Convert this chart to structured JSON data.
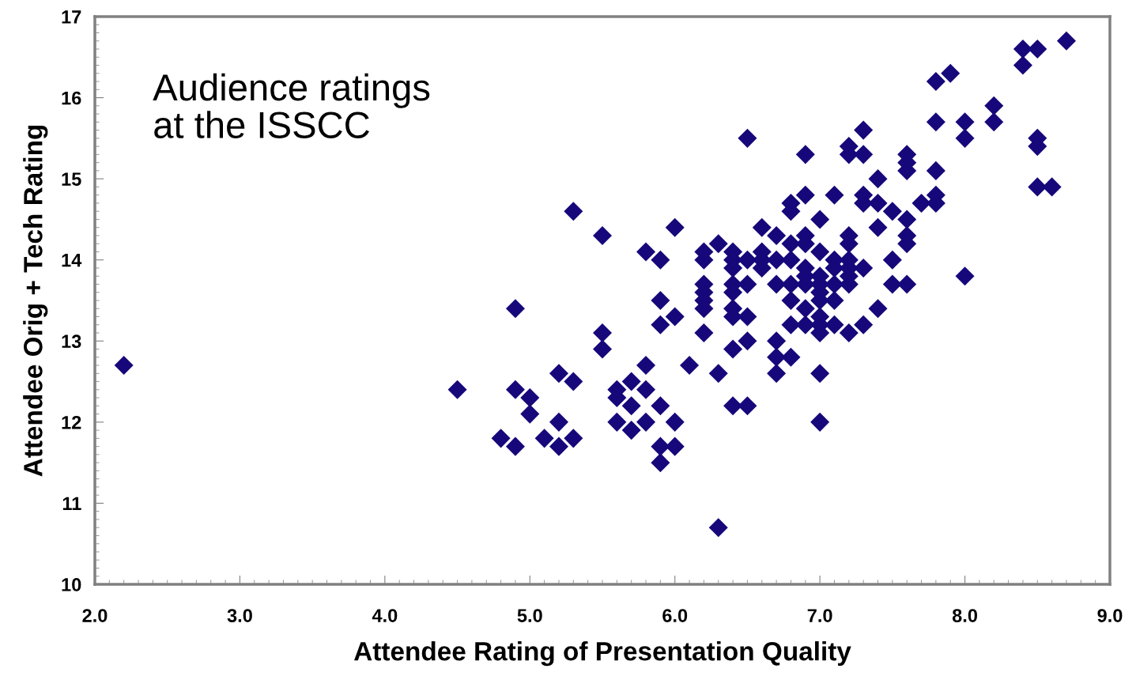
{
  "chart_data": {
    "type": "scatter",
    "xlabel": "Attendee Rating of Presentation Quality",
    "ylabel": "Attendee Orig + Tech Rating",
    "annotations": [
      "Audience ratings\nat the ISSCC"
    ],
    "marker": "diamond",
    "grid": false,
    "xlim": [
      2.0,
      9.0
    ],
    "ylim": [
      10,
      17
    ],
    "xticks": [
      {
        "value": 2,
        "label": "2.0"
      },
      {
        "value": 3,
        "label": "3.0"
      },
      {
        "value": 4,
        "label": "4.0"
      },
      {
        "value": 5,
        "label": "5.0"
      },
      {
        "value": 6,
        "label": "6.0"
      },
      {
        "value": 7,
        "label": "7.0"
      },
      {
        "value": 8,
        "label": "8.0"
      },
      {
        "value": 9,
        "label": "9.0"
      }
    ],
    "yticks": [
      10,
      11,
      12,
      13,
      14,
      15,
      16,
      17
    ],
    "series": [
      {
        "color": "#16087a",
        "x": [
          2.2,
          4.5,
          4.8,
          4.9,
          4.9,
          4.9,
          5.0,
          5.0,
          5.1,
          5.2,
          5.2,
          5.2,
          5.3,
          5.3,
          5.3,
          5.5,
          5.5,
          5.5,
          5.6,
          5.6,
          5.6,
          5.7,
          5.7,
          5.7,
          5.8,
          5.8,
          5.8,
          5.8,
          5.9,
          5.9,
          5.9,
          5.9,
          5.9,
          5.9,
          6.0,
          6.0,
          6.0,
          6.0,
          6.1,
          6.2,
          6.2,
          6.2,
          6.2,
          6.2,
          6.2,
          6.2,
          6.3,
          6.3,
          6.3,
          6.4,
          6.4,
          6.4,
          6.4,
          6.4,
          6.4,
          6.4,
          6.4,
          6.4,
          6.5,
          6.5,
          6.5,
          6.5,
          6.5,
          6.5,
          6.6,
          6.6,
          6.6,
          6.6,
          6.7,
          6.7,
          6.7,
          6.7,
          6.7,
          6.7,
          6.8,
          6.8,
          6.8,
          6.8,
          6.8,
          6.8,
          6.8,
          6.8,
          6.9,
          6.9,
          6.9,
          6.9,
          6.9,
          6.9,
          6.9,
          6.9,
          6.9,
          7.0,
          7.0,
          7.0,
          7.0,
          7.0,
          7.0,
          7.0,
          7.0,
          7.0,
          7.0,
          7.0,
          7.1,
          7.1,
          7.1,
          7.1,
          7.1,
          7.1,
          7.2,
          7.2,
          7.2,
          7.2,
          7.2,
          7.2,
          7.2,
          7.2,
          7.2,
          7.3,
          7.3,
          7.3,
          7.3,
          7.3,
          7.3,
          7.4,
          7.4,
          7.4,
          7.4,
          7.5,
          7.5,
          7.5,
          7.6,
          7.6,
          7.6,
          7.6,
          7.6,
          7.6,
          7.6,
          7.7,
          7.8,
          7.8,
          7.8,
          7.8,
          7.8,
          7.9,
          8.0,
          8.0,
          8.0,
          8.2,
          8.2,
          8.4,
          8.4,
          8.5,
          8.5,
          8.5,
          8.5,
          8.6,
          8.7
        ],
        "values": [
          12.7,
          12.4,
          11.8,
          11.7,
          12.4,
          13.4,
          12.3,
          12.1,
          11.8,
          11.7,
          12.0,
          12.6,
          11.8,
          12.5,
          14.6,
          12.9,
          13.1,
          14.3,
          12.0,
          12.3,
          12.4,
          11.9,
          12.2,
          12.5,
          12.0,
          12.4,
          12.7,
          14.1,
          11.5,
          11.7,
          12.2,
          13.2,
          13.5,
          14.0,
          11.7,
          12.0,
          13.3,
          14.4,
          12.7,
          13.1,
          13.4,
          13.5,
          13.6,
          13.7,
          14.0,
          14.1,
          10.7,
          12.6,
          14.2,
          12.2,
          12.9,
          13.3,
          13.4,
          13.6,
          13.7,
          13.9,
          14.0,
          14.1,
          12.2,
          13.0,
          13.3,
          13.7,
          14.0,
          15.5,
          13.9,
          14.0,
          14.1,
          14.4,
          12.6,
          12.8,
          13.0,
          13.7,
          14.0,
          14.3,
          12.8,
          13.2,
          13.5,
          13.7,
          14.0,
          14.2,
          14.6,
          14.7,
          13.2,
          13.4,
          13.7,
          13.8,
          13.9,
          14.2,
          14.3,
          14.8,
          15.3,
          12.0,
          12.6,
          13.1,
          13.2,
          13.3,
          13.5,
          13.6,
          13.7,
          13.8,
          14.1,
          14.5,
          13.2,
          13.5,
          13.7,
          13.9,
          14.0,
          14.8,
          13.1,
          13.7,
          13.8,
          13.9,
          14.0,
          14.2,
          14.3,
          15.3,
          15.4,
          13.2,
          13.9,
          14.7,
          14.8,
          15.3,
          15.6,
          13.4,
          14.4,
          14.7,
          15.0,
          13.7,
          14.0,
          14.6,
          13.7,
          14.2,
          14.3,
          14.5,
          15.1,
          15.2,
          15.3,
          14.7,
          14.7,
          14.8,
          15.1,
          15.7,
          16.2,
          16.3,
          13.8,
          15.5,
          15.7,
          15.7,
          15.9,
          16.4,
          16.6,
          14.9,
          15.4,
          15.5,
          16.6,
          14.9,
          16.7
        ]
      }
    ]
  }
}
